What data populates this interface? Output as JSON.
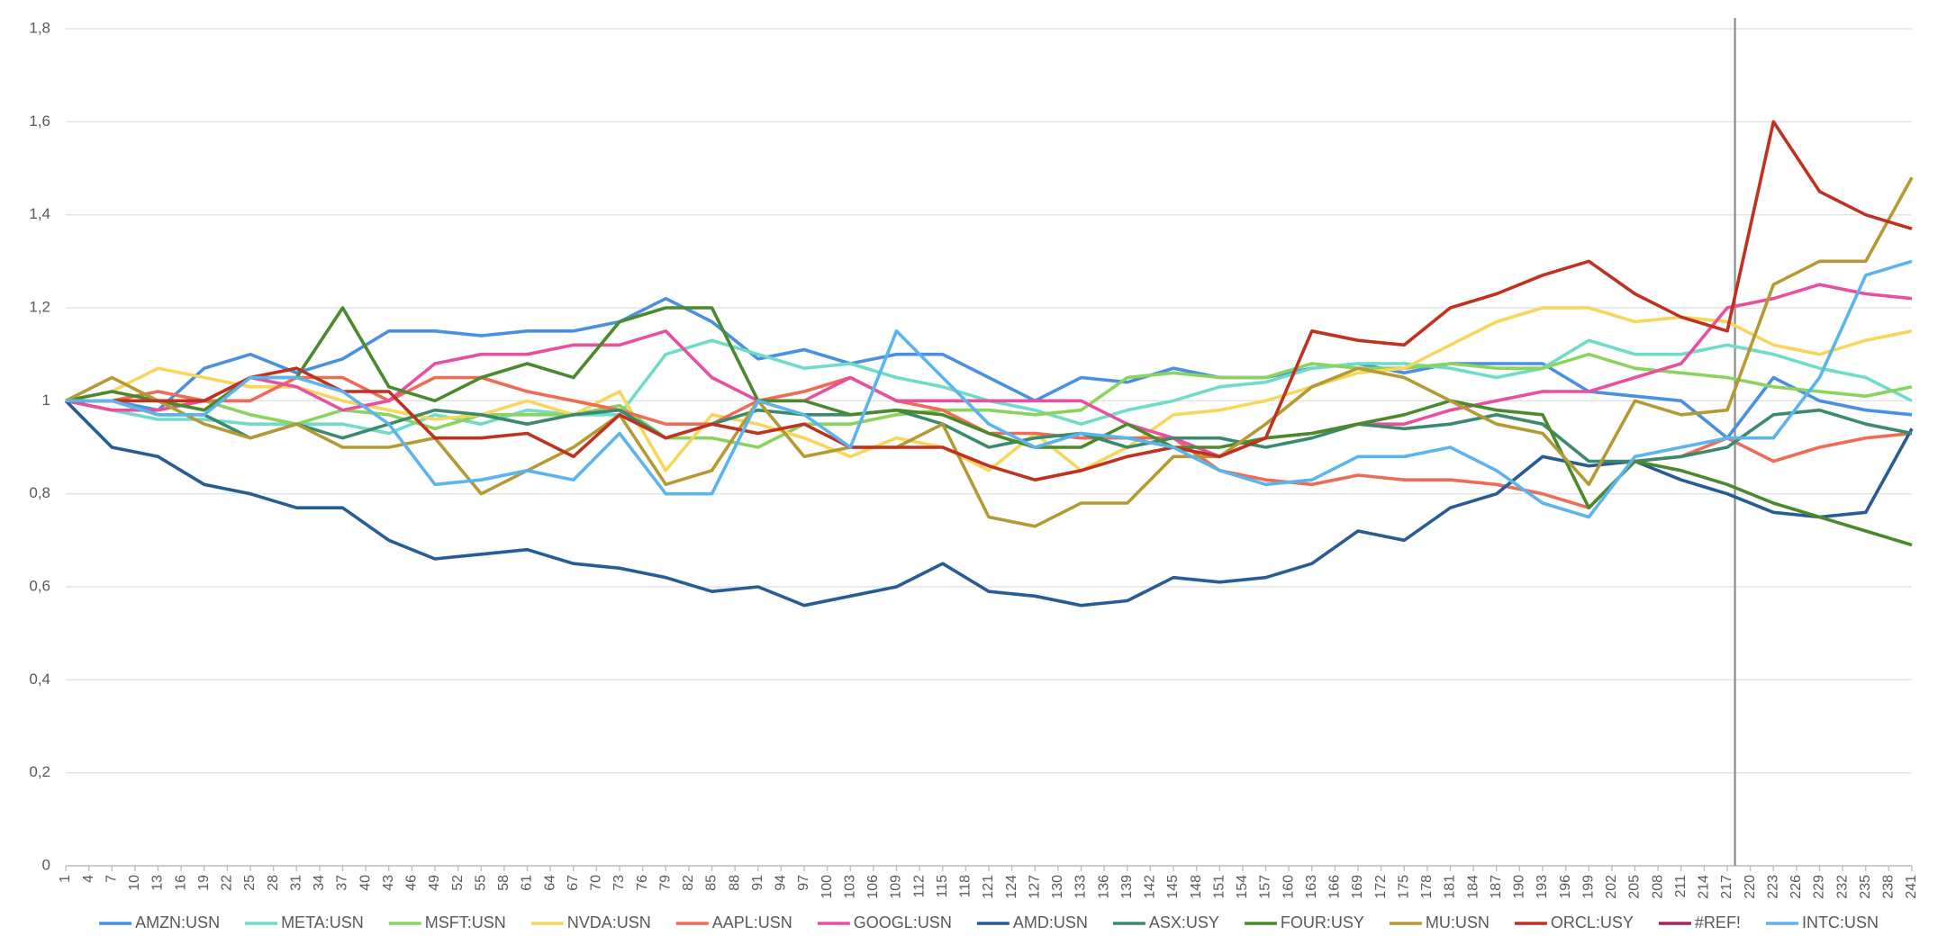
{
  "chart_data": {
    "type": "line",
    "x": [
      1,
      7,
      13,
      19,
      25,
      31,
      37,
      43,
      49,
      55,
      61,
      67,
      73,
      79,
      85,
      91,
      97,
      103,
      109,
      115,
      121,
      127,
      133,
      139,
      145,
      151,
      157,
      163,
      169,
      175,
      181,
      187,
      193,
      199,
      205,
      211,
      217,
      223,
      229,
      235,
      241
    ],
    "xlim": [
      1,
      241
    ],
    "xticks": [
      1,
      4,
      7,
      10,
      13,
      16,
      19,
      22,
      25,
      28,
      31,
      34,
      37,
      40,
      43,
      46,
      49,
      52,
      55,
      58,
      61,
      64,
      67,
      70,
      73,
      76,
      79,
      82,
      85,
      88,
      91,
      94,
      97,
      100,
      103,
      106,
      109,
      112,
      115,
      118,
      121,
      124,
      127,
      130,
      133,
      136,
      139,
      142,
      145,
      148,
      151,
      154,
      157,
      160,
      163,
      166,
      169,
      172,
      175,
      178,
      181,
      184,
      187,
      190,
      193,
      196,
      199,
      202,
      205,
      208,
      211,
      214,
      217,
      220,
      223,
      226,
      229,
      232,
      235,
      238,
      241
    ],
    "ylim": [
      0,
      1.8
    ],
    "yticks": [
      0,
      {
        "value": 0.2,
        "label": "0,2"
      },
      {
        "value": 0.4,
        "label": "0,4"
      },
      {
        "value": 0.6,
        "label": "0,6"
      },
      {
        "value": 0.8,
        "label": "0,8"
      },
      1,
      {
        "value": 1.2,
        "label": "1,2"
      },
      {
        "value": 1.4,
        "label": "1,4"
      },
      {
        "value": 1.6,
        "label": "1,6"
      },
      {
        "value": 1.8,
        "label": "1,8"
      }
    ],
    "grid": true,
    "legend": "bottom",
    "vline": 218,
    "series": [
      {
        "name": "AMZN:USN",
        "color": "#4a90e2",
        "values": [
          1,
          1.0,
          0.98,
          1.07,
          1.1,
          1.06,
          1.09,
          1.15,
          1.15,
          1.14,
          1.15,
          1.15,
          1.17,
          1.22,
          1.17,
          1.09,
          1.11,
          1.08,
          1.1,
          1.1,
          1.05,
          1.0,
          1.05,
          1.04,
          1.07,
          1.05,
          1.05,
          1.07,
          1.08,
          1.06,
          1.08,
          1.08,
          1.08,
          1.02,
          1.01,
          1.0,
          0.92,
          1.05,
          1.0,
          0.98,
          0.97
        ]
      },
      {
        "name": "META:USN",
        "color": "#6edcc8",
        "values": [
          1,
          0.98,
          0.96,
          0.96,
          0.95,
          0.95,
          0.95,
          0.93,
          0.97,
          0.95,
          0.98,
          0.97,
          0.97,
          1.1,
          1.13,
          1.1,
          1.07,
          1.08,
          1.05,
          1.03,
          1.0,
          0.98,
          0.95,
          0.98,
          1.0,
          1.03,
          1.04,
          1.07,
          1.08,
          1.08,
          1.07,
          1.05,
          1.07,
          1.13,
          1.1,
          1.1,
          1.12,
          1.1,
          1.07,
          1.05,
          1.0
        ]
      },
      {
        "name": "MSFT:USN",
        "color": "#8ad45e",
        "values": [
          1,
          1.0,
          1.0,
          1.0,
          0.97,
          0.95,
          0.98,
          0.97,
          0.94,
          0.97,
          0.97,
          0.97,
          0.99,
          0.92,
          0.92,
          0.9,
          0.95,
          0.95,
          0.97,
          0.98,
          0.98,
          0.97,
          0.98,
          1.05,
          1.06,
          1.05,
          1.05,
          1.08,
          1.07,
          1.07,
          1.08,
          1.07,
          1.07,
          1.1,
          1.07,
          1.06,
          1.05,
          1.03,
          1.02,
          1.01,
          1.03
        ]
      },
      {
        "name": "NVDA:USN",
        "color": "#f7d65c",
        "values": [
          1,
          1.02,
          1.07,
          1.05,
          1.03,
          1.03,
          1.0,
          0.98,
          0.96,
          0.97,
          1.0,
          0.97,
          1.02,
          0.85,
          0.97,
          0.95,
          0.92,
          0.88,
          0.92,
          0.9,
          0.85,
          0.93,
          0.85,
          0.9,
          0.97,
          0.98,
          1.0,
          1.03,
          1.06,
          1.07,
          1.12,
          1.17,
          1.2,
          1.2,
          1.17,
          1.18,
          1.17,
          1.12,
          1.1,
          1.13,
          1.15
        ]
      },
      {
        "name": "AAPL:USN",
        "color": "#ee6b55",
        "values": [
          1,
          1.0,
          1.02,
          1.0,
          1.0,
          1.05,
          1.05,
          1.0,
          1.05,
          1.05,
          1.02,
          1.0,
          0.98,
          0.95,
          0.95,
          1.0,
          1.02,
          1.05,
          1.0,
          0.98,
          0.93,
          0.93,
          0.92,
          0.92,
          0.92,
          0.85,
          0.83,
          0.82,
          0.84,
          0.83,
          0.83,
          0.82,
          0.8,
          0.77,
          0.87,
          0.88,
          0.92,
          0.87,
          0.9,
          0.92,
          0.93
        ]
      },
      {
        "name": "GOOGL:USN",
        "color": "#e8509f",
        "values": [
          1,
          0.98,
          0.98,
          1.0,
          1.05,
          1.03,
          0.98,
          1.0,
          1.08,
          1.1,
          1.1,
          1.12,
          1.12,
          1.15,
          1.05,
          1.0,
          1.0,
          1.05,
          1.0,
          1.0,
          1.0,
          1.0,
          1.0,
          0.95,
          0.92,
          0.88,
          0.92,
          0.93,
          0.95,
          0.95,
          0.98,
          1.0,
          1.02,
          1.02,
          1.05,
          1.08,
          1.2,
          1.22,
          1.25,
          1.23,
          1.22
        ]
      },
      {
        "name": "AMD:USN",
        "color": "#275c94",
        "values": [
          1,
          0.9,
          0.88,
          0.82,
          0.8,
          0.77,
          0.77,
          0.7,
          0.66,
          0.67,
          0.68,
          0.65,
          0.64,
          0.62,
          0.59,
          0.6,
          0.56,
          0.58,
          0.6,
          0.65,
          0.59,
          0.58,
          0.56,
          0.57,
          0.62,
          0.61,
          0.62,
          0.65,
          0.72,
          0.7,
          0.77,
          0.8,
          0.88,
          0.86,
          0.87,
          0.83,
          0.8,
          0.76,
          0.75,
          0.76,
          0.94
        ]
      },
      {
        "name": "ASX:USY",
        "color": "#3a8a6e",
        "values": [
          1,
          1.0,
          0.97,
          0.97,
          0.92,
          0.95,
          0.92,
          0.95,
          0.98,
          0.97,
          0.95,
          0.97,
          0.98,
          0.92,
          0.95,
          0.98,
          0.97,
          0.97,
          0.98,
          0.95,
          0.9,
          0.92,
          0.93,
          0.9,
          0.92,
          0.92,
          0.9,
          0.92,
          0.95,
          0.94,
          0.95,
          0.97,
          0.95,
          0.87,
          0.87,
          0.88,
          0.9,
          0.97,
          0.98,
          0.95,
          0.93
        ]
      },
      {
        "name": "FOUR:USY",
        "color": "#4a8a2c",
        "values": [
          1,
          1.02,
          1.0,
          0.98,
          1.05,
          1.05,
          1.2,
          1.03,
          1.0,
          1.05,
          1.08,
          1.05,
          1.17,
          1.2,
          1.2,
          1.0,
          1.0,
          0.97,
          0.98,
          0.97,
          0.93,
          0.9,
          0.9,
          0.95,
          0.9,
          0.9,
          0.92,
          0.93,
          0.95,
          0.97,
          1.0,
          0.98,
          0.97,
          0.77,
          0.87,
          0.85,
          0.82,
          0.78,
          0.75,
          0.72,
          0.69
        ]
      },
      {
        "name": "MU:USN",
        "color": "#b59a34",
        "values": [
          1,
          1.05,
          1.0,
          0.95,
          0.92,
          0.95,
          0.9,
          0.9,
          0.92,
          0.8,
          0.85,
          0.9,
          0.97,
          0.82,
          0.85,
          1.0,
          0.88,
          0.9,
          0.9,
          0.95,
          0.75,
          0.73,
          0.78,
          0.78,
          0.88,
          0.88,
          0.95,
          1.03,
          1.07,
          1.05,
          1.0,
          0.95,
          0.93,
          0.82,
          1.0,
          0.97,
          0.98,
          1.25,
          1.3,
          1.3,
          1.48
        ]
      },
      {
        "name": "ORCL:USY",
        "color": "#c0311f",
        "values": [
          1,
          1.0,
          1.0,
          1.0,
          1.05,
          1.07,
          1.02,
          1.02,
          0.92,
          0.92,
          0.93,
          0.88,
          0.97,
          0.92,
          0.95,
          0.93,
          0.95,
          0.9,
          0.9,
          0.9,
          0.86,
          0.83,
          0.85,
          0.88,
          0.9,
          0.88,
          0.92,
          1.15,
          1.13,
          1.12,
          1.2,
          1.23,
          1.27,
          1.3,
          1.23,
          1.18,
          1.15,
          1.6,
          1.45,
          1.4,
          1.37
        ]
      },
      {
        "name": "#REF!",
        "color": "#a4275a",
        "values": [
          null,
          null,
          null,
          null,
          null,
          null,
          null,
          null,
          null,
          null,
          null,
          null,
          null,
          null,
          null,
          null,
          null,
          null,
          null,
          null,
          null,
          null,
          null,
          null,
          null,
          null,
          null,
          null,
          null,
          null,
          null,
          null,
          null,
          null,
          null,
          null,
          null,
          null,
          null,
          null,
          null
        ]
      },
      {
        "name": "INTC:USN",
        "color": "#5bb4ee",
        "values": [
          1,
          1.0,
          0.97,
          0.97,
          1.05,
          1.05,
          1.02,
          0.95,
          0.82,
          0.83,
          0.85,
          0.83,
          0.93,
          0.8,
          0.8,
          1.0,
          0.97,
          0.9,
          1.15,
          1.05,
          0.95,
          0.9,
          0.93,
          0.92,
          0.9,
          0.85,
          0.82,
          0.83,
          0.88,
          0.88,
          0.9,
          0.85,
          0.78,
          0.75,
          0.88,
          0.9,
          0.92,
          0.92,
          1.05,
          1.27,
          1.3
        ]
      }
    ]
  }
}
